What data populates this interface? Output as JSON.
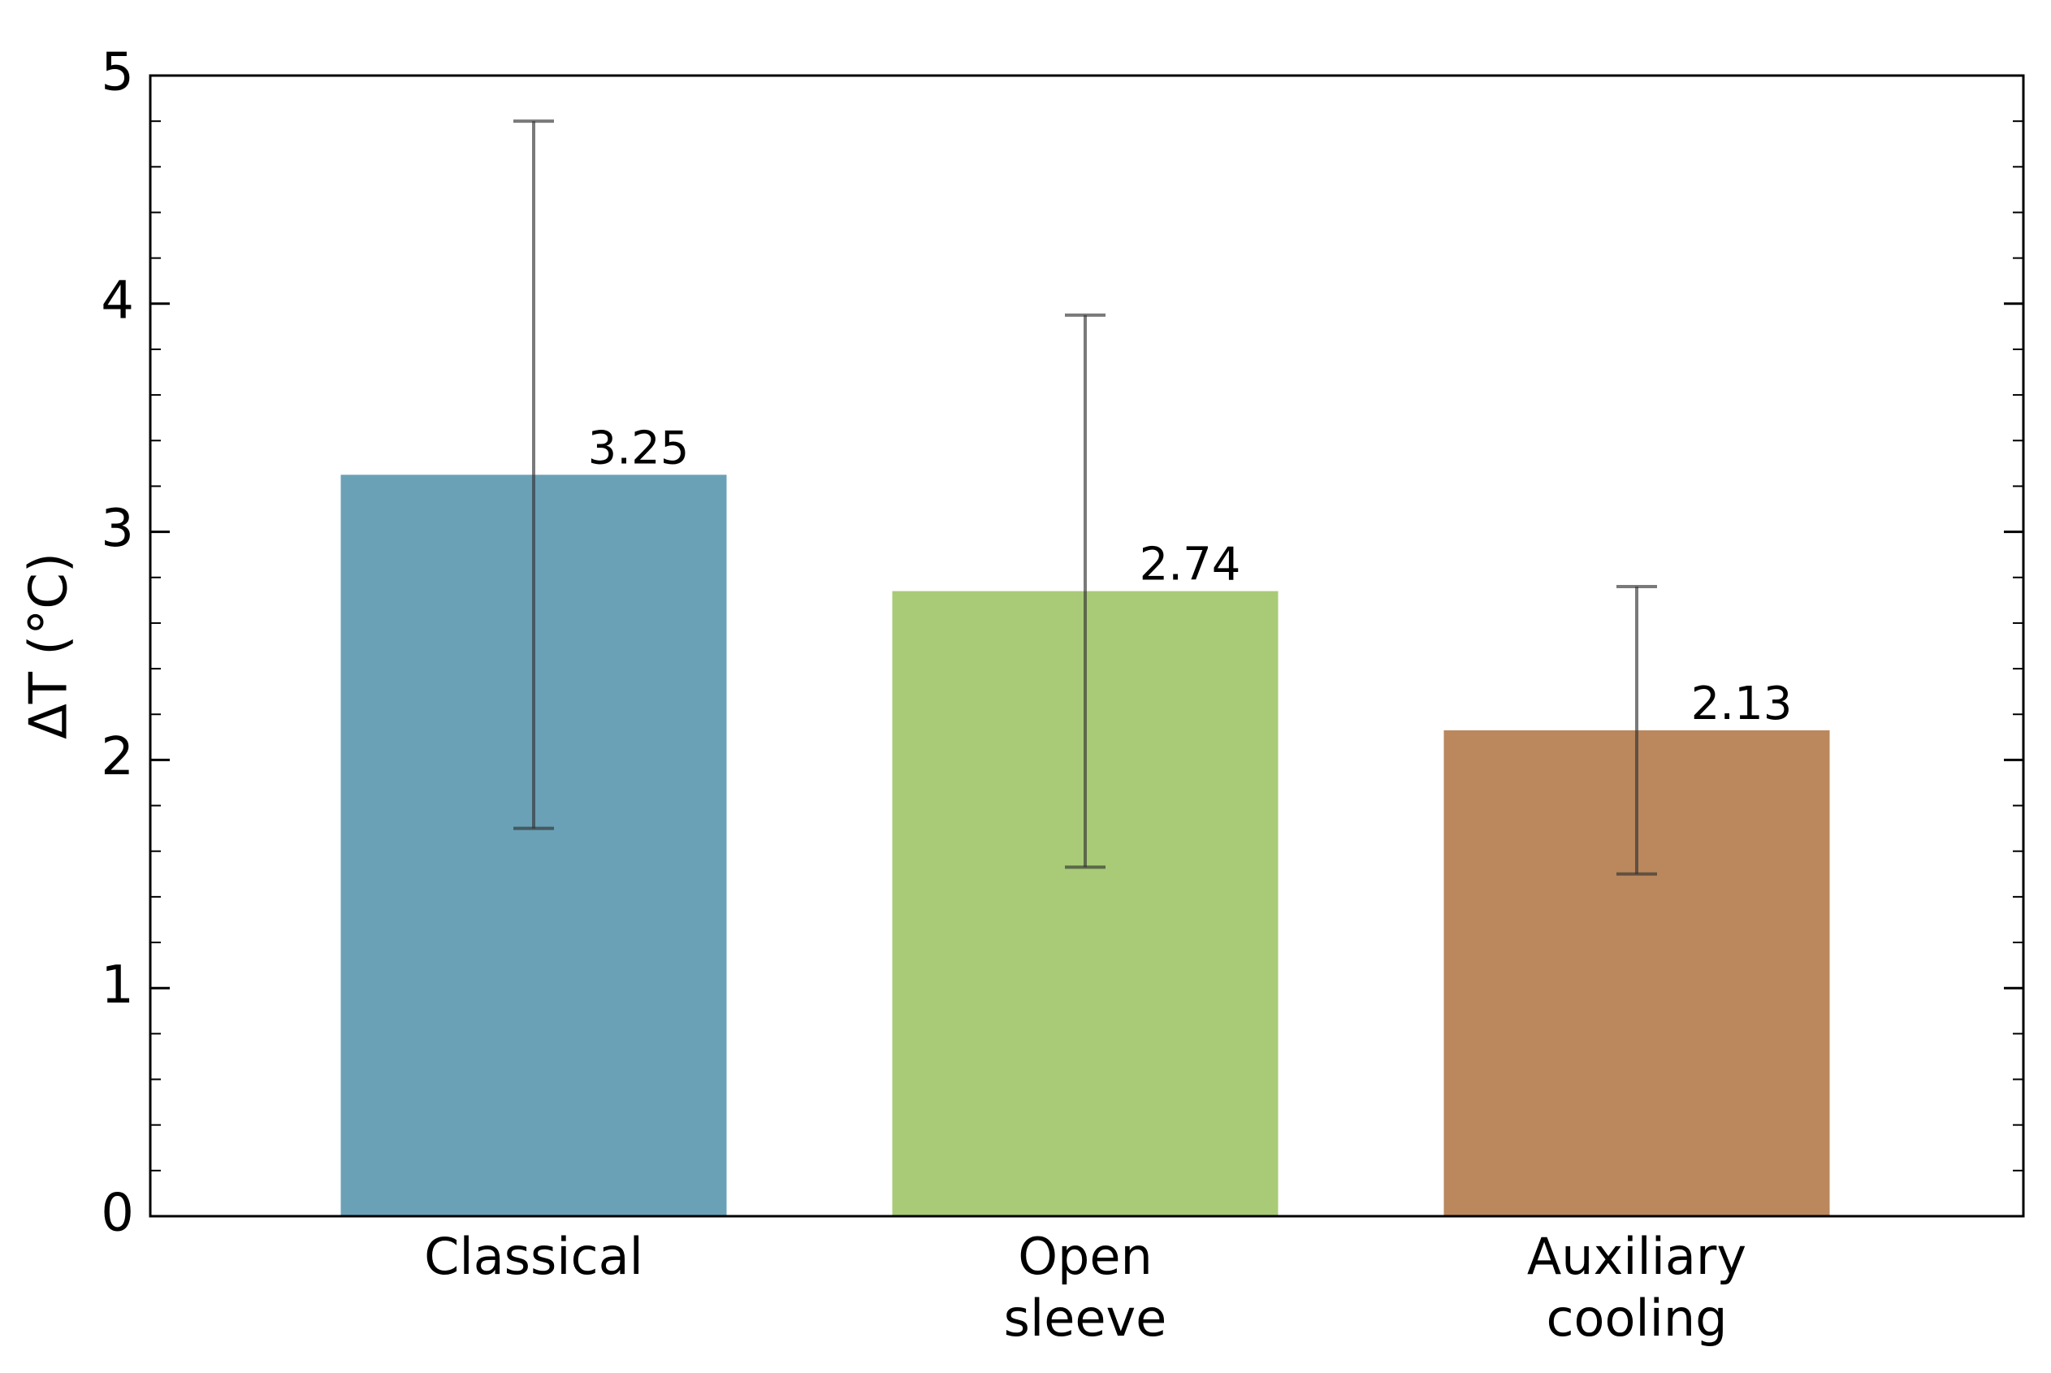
{
  "chart_data": {
    "type": "bar",
    "y_label": "ΔT (°C)",
    "categories": [
      "Classical",
      "Open sleeve",
      "Auxiliary cooling"
    ],
    "values": [
      3.25,
      2.74,
      2.13
    ],
    "errors": [
      1.55,
      1.21,
      0.63
    ],
    "value_labels": [
      "3.25",
      "2.74",
      "2.13"
    ],
    "colors": [
      "#6aa1b7",
      "#a9cb78",
      "#ba885c"
    ],
    "ylim": [
      0,
      5
    ],
    "yticks": [
      0,
      1,
      2,
      3,
      4,
      5
    ],
    "minor_yticks": [
      0.2,
      0.4,
      0.6,
      0.8,
      1.2,
      1.4,
      1.6,
      1.8,
      2.2,
      2.4,
      2.6,
      2.8,
      3.2,
      3.4,
      3.6,
      3.8,
      4.2,
      4.4,
      4.6,
      4.8
    ]
  }
}
